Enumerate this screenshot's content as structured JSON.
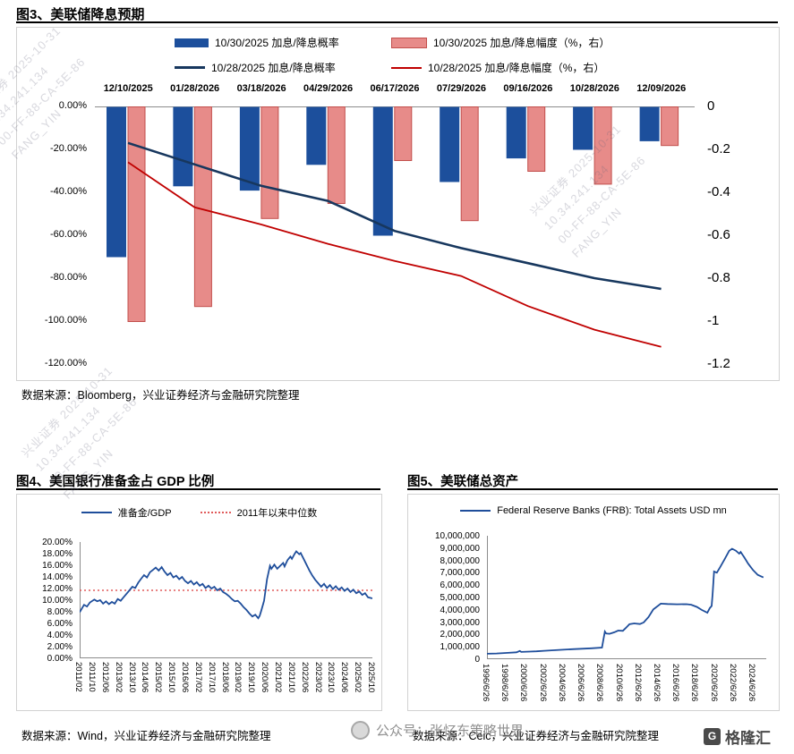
{
  "watermark": {
    "text_lines": [
      "兴业证券 2025-10-31",
      "10.34.241.134",
      "00-FF-88-CA-5E-86",
      "FANG_YIN"
    ],
    "footer_center": "公众号：张忆东策略世界",
    "footer_brand": "格隆汇"
  },
  "fig3": {
    "title": "图3、美联储降息预期",
    "source": "数据来源：Bloomberg，兴业证券经济与金融研究院整理"
  },
  "fig4": {
    "title": "图4、美国银行准备金占 GDP 比例",
    "source": "数据来源：Wind，兴业证券经济与金融研究院整理"
  },
  "fig5": {
    "title": "图5、美联储总资产",
    "source": "数据来源：Ceic，兴业证券经济与金融研究院整理"
  },
  "chart_data": [
    {
      "id": "fig3",
      "type": "bar",
      "title": "图3、美联储降息预期",
      "legend_position": "top",
      "categories": [
        "12/10/2025",
        "01/28/2026",
        "03/18/2026",
        "04/29/2026",
        "06/17/2026",
        "07/29/2026",
        "09/16/2026",
        "10/28/2026",
        "12/09/2026"
      ],
      "series": [
        {
          "name": "10/30/2025 加息/降息概率",
          "kind": "bar",
          "axis": "left",
          "color": "#1c4f9c",
          "values": [
            -70,
            -37,
            -39,
            -27,
            -60,
            -35,
            -24,
            -20,
            -16
          ]
        },
        {
          "name": "10/30/2025 加息/降息幅度（%，右）",
          "kind": "bar",
          "axis": "right",
          "color": "#e78b89",
          "border": "#c24f4c",
          "values": [
            -1.0,
            -0.93,
            -0.52,
            -0.45,
            -0.25,
            -0.53,
            -0.3,
            -0.36,
            -0.18
          ]
        },
        {
          "name": "10/28/2025 加息/降息概率",
          "kind": "line",
          "axis": "left",
          "color": "#17375e",
          "values": [
            -17,
            -27,
            -37,
            -44,
            -58,
            -66,
            -73,
            -80,
            -85
          ]
        },
        {
          "name": "10/28/2025 加息/降息幅度（%，右）",
          "kind": "line",
          "axis": "right",
          "color": "#c00000",
          "values": [
            -0.26,
            -0.47,
            -0.55,
            -0.64,
            -0.72,
            -0.79,
            -0.93,
            -1.04,
            -1.12
          ]
        }
      ],
      "left_axis": {
        "min": -120,
        "max": 0,
        "ticks": [
          "0.00%",
          "-20.00%",
          "-40.00%",
          "-60.00%",
          "-80.00%",
          "-100.00%",
          "-120.00%"
        ]
      },
      "right_axis": {
        "min": -1.2,
        "max": 0,
        "ticks": [
          "0",
          "-0.2",
          "-0.4",
          "-0.6",
          "-0.8",
          "-1",
          "-1.2"
        ]
      }
    },
    {
      "id": "fig4",
      "type": "line",
      "title": "图4、美国银行准备金占 GDP 比例",
      "ylim": [
        0,
        20
      ],
      "yticks": [
        "20.00%",
        "18.00%",
        "16.00%",
        "14.00%",
        "12.00%",
        "10.00%",
        "8.00%",
        "6.00%",
        "4.00%",
        "2.00%",
        "0.00%"
      ],
      "xticks": [
        "2011/02",
        "2011/10",
        "2012/06",
        "2013/02",
        "2013/10",
        "2014/06",
        "2015/02",
        "2015/10",
        "2016/06",
        "2017/02",
        "2017/10",
        "2018/06",
        "2019/02",
        "2019/10",
        "2020/06",
        "2021/02",
        "2021/10",
        "2022/06",
        "2023/02",
        "2023/10",
        "2024/06",
        "2025/02",
        "2025/10"
      ],
      "xtick_end_frac": 1.0,
      "legend": [
        {
          "name": "准备金/GDP",
          "color": "#1f4e9b",
          "style": "solid"
        },
        {
          "name": "2011年以来中位数",
          "color": "#e05a5a",
          "style": "dotted"
        }
      ],
      "median": 11.7,
      "points": [
        [
          0,
          7.9
        ],
        [
          0.008,
          8.6
        ],
        [
          0.015,
          9.2
        ],
        [
          0.025,
          8.9
        ],
        [
          0.035,
          9.6
        ],
        [
          0.05,
          10.1
        ],
        [
          0.06,
          9.8
        ],
        [
          0.07,
          10.0
        ],
        [
          0.08,
          9.4
        ],
        [
          0.09,
          9.8
        ],
        [
          0.1,
          9.3
        ],
        [
          0.11,
          9.7
        ],
        [
          0.12,
          9.4
        ],
        [
          0.13,
          10.2
        ],
        [
          0.14,
          9.9
        ],
        [
          0.15,
          10.5
        ],
        [
          0.16,
          11.1
        ],
        [
          0.17,
          11.7
        ],
        [
          0.18,
          12.3
        ],
        [
          0.19,
          12.1
        ],
        [
          0.2,
          13.0
        ],
        [
          0.21,
          13.7
        ],
        [
          0.22,
          14.3
        ],
        [
          0.23,
          13.9
        ],
        [
          0.24,
          14.8
        ],
        [
          0.25,
          15.2
        ],
        [
          0.26,
          15.6
        ],
        [
          0.27,
          15.1
        ],
        [
          0.28,
          15.7
        ],
        [
          0.29,
          14.9
        ],
        [
          0.3,
          14.3
        ],
        [
          0.31,
          14.7
        ],
        [
          0.32,
          13.9
        ],
        [
          0.33,
          14.2
        ],
        [
          0.34,
          13.6
        ],
        [
          0.35,
          14.0
        ],
        [
          0.36,
          13.3
        ],
        [
          0.37,
          12.9
        ],
        [
          0.38,
          13.3
        ],
        [
          0.39,
          12.7
        ],
        [
          0.4,
          13.1
        ],
        [
          0.41,
          12.5
        ],
        [
          0.42,
          12.8
        ],
        [
          0.43,
          12.1
        ],
        [
          0.44,
          12.5
        ],
        [
          0.45,
          12.0
        ],
        [
          0.46,
          12.3
        ],
        [
          0.47,
          11.7
        ],
        [
          0.48,
          12.0
        ],
        [
          0.49,
          11.4
        ],
        [
          0.5,
          11.1
        ],
        [
          0.51,
          10.7
        ],
        [
          0.52,
          10.2
        ],
        [
          0.53,
          9.8
        ],
        [
          0.54,
          9.9
        ],
        [
          0.55,
          9.4
        ],
        [
          0.56,
          8.8
        ],
        [
          0.57,
          8.3
        ],
        [
          0.58,
          7.7
        ],
        [
          0.59,
          7.2
        ],
        [
          0.6,
          7.5
        ],
        [
          0.61,
          6.9
        ],
        [
          0.615,
          7.3
        ],
        [
          0.62,
          8.1
        ],
        [
          0.63,
          9.9
        ],
        [
          0.64,
          13.6
        ],
        [
          0.65,
          15.9
        ],
        [
          0.655,
          15.4
        ],
        [
          0.665,
          16.1
        ],
        [
          0.675,
          15.4
        ],
        [
          0.685,
          15.9
        ],
        [
          0.695,
          16.4
        ],
        [
          0.7,
          15.8
        ],
        [
          0.71,
          16.9
        ],
        [
          0.72,
          17.5
        ],
        [
          0.725,
          17.1
        ],
        [
          0.735,
          18.0
        ],
        [
          0.74,
          18.4
        ],
        [
          0.75,
          17.9
        ],
        [
          0.755,
          18.1
        ],
        [
          0.765,
          17.1
        ],
        [
          0.775,
          16.1
        ],
        [
          0.785,
          15.1
        ],
        [
          0.795,
          14.2
        ],
        [
          0.805,
          13.5
        ],
        [
          0.815,
          12.9
        ],
        [
          0.825,
          12.3
        ],
        [
          0.835,
          12.8
        ],
        [
          0.845,
          12.1
        ],
        [
          0.855,
          12.6
        ],
        [
          0.865,
          11.9
        ],
        [
          0.875,
          12.4
        ],
        [
          0.885,
          11.8
        ],
        [
          0.895,
          12.2
        ],
        [
          0.905,
          11.6
        ],
        [
          0.915,
          12.0
        ],
        [
          0.925,
          11.4
        ],
        [
          0.935,
          11.8
        ],
        [
          0.945,
          11.2
        ],
        [
          0.955,
          11.5
        ],
        [
          0.965,
          10.9
        ],
        [
          0.975,
          11.2
        ],
        [
          0.985,
          10.5
        ],
        [
          1,
          10.3
        ]
      ]
    },
    {
      "id": "fig5",
      "type": "line",
      "title": "图5、美联储总资产",
      "ylim": [
        0,
        10000000
      ],
      "yticks": [
        "10,000,000",
        "9,000,000",
        "8,000,000",
        "7,000,000",
        "6,000,000",
        "5,000,000",
        "4,000,000",
        "3,000,000",
        "2,000,000",
        "1,000,000",
        "0"
      ],
      "xticks": [
        "1996/6/26",
        "1998/6/26",
        "2000/6/26",
        "2002/6/26",
        "2004/6/26",
        "2006/6/26",
        "2008/6/26",
        "2010/6/26",
        "2012/6/26",
        "2014/6/26",
        "2016/6/26",
        "2018/6/26",
        "2020/6/26",
        "2022/6/26",
        "2024/6/26"
      ],
      "xtick_end_frac": 0.952,
      "legend": [
        {
          "name": "Federal Reserve Banks (FRB): Total Assets USD mn",
          "color": "#1f4e9b",
          "style": "solid"
        }
      ],
      "x_domain": [
        1996.49,
        2025.9
      ],
      "points": [
        [
          1996.5,
          440000
        ],
        [
          1997.5,
          465000
        ],
        [
          1998.5,
          510000
        ],
        [
          1999.6,
          560000
        ],
        [
          1999.95,
          670000
        ],
        [
          2000.1,
          590000
        ],
        [
          2001,
          615000
        ],
        [
          2001.7,
          640000
        ],
        [
          2002.5,
          680000
        ],
        [
          2003.5,
          725000
        ],
        [
          2004.5,
          770000
        ],
        [
          2005.5,
          815000
        ],
        [
          2006.5,
          850000
        ],
        [
          2007.5,
          885000
        ],
        [
          2008.6,
          940000
        ],
        [
          2008.73,
          1480000
        ],
        [
          2008.9,
          2240000
        ],
        [
          2009.05,
          2080000
        ],
        [
          2009.4,
          2060000
        ],
        [
          2009.9,
          2180000
        ],
        [
          2010.3,
          2320000
        ],
        [
          2010.8,
          2300000
        ],
        [
          2011.1,
          2520000
        ],
        [
          2011.5,
          2830000
        ],
        [
          2012,
          2900000
        ],
        [
          2012.6,
          2850000
        ],
        [
          2013,
          2980000
        ],
        [
          2013.5,
          3420000
        ],
        [
          2014,
          4030000
        ],
        [
          2014.8,
          4500000
        ],
        [
          2015.5,
          4470000
        ],
        [
          2016.5,
          4450000
        ],
        [
          2017.5,
          4460000
        ],
        [
          2018,
          4410000
        ],
        [
          2018.6,
          4230000
        ],
        [
          2019.1,
          3990000
        ],
        [
          2019.7,
          3760000
        ],
        [
          2019.95,
          4140000
        ],
        [
          2020.15,
          4310000
        ],
        [
          2020.25,
          5300000
        ],
        [
          2020.4,
          7100000
        ],
        [
          2020.7,
          7010000
        ],
        [
          2021,
          7400000
        ],
        [
          2021.5,
          8070000
        ],
        [
          2022,
          8780000
        ],
        [
          2022.3,
          8950000
        ],
        [
          2022.7,
          8790000
        ],
        [
          2023.05,
          8550000
        ],
        [
          2023.2,
          8690000
        ],
        [
          2023.6,
          8230000
        ],
        [
          2024,
          7740000
        ],
        [
          2024.5,
          7230000
        ],
        [
          2025,
          6830000
        ],
        [
          2025.6,
          6620000
        ]
      ]
    }
  ]
}
